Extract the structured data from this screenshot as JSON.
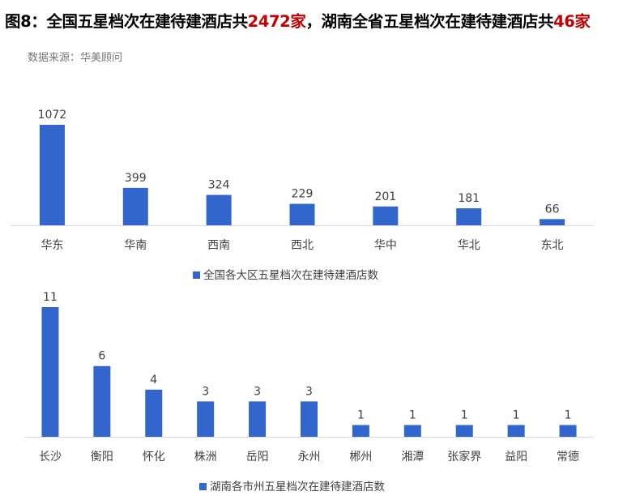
{
  "header": {
    "title_a": "图8：全国五星档次在建待建酒店共",
    "title_b": "2472家",
    "title_c": "，湖南全省五星档次在建待建酒店共",
    "title_d": "46家",
    "source": "数据来源：华美顾问",
    "highlight_color": "#c00000"
  },
  "chart_data": [
    {
      "type": "bar",
      "categories": [
        "华东",
        "华南",
        "西南",
        "西北",
        "华中",
        "华北",
        "东北"
      ],
      "series": [
        {
          "name": "全国各大区五星档次在建待建酒店数",
          "values": [
            1072,
            399,
            324,
            229,
            201,
            181,
            66
          ]
        }
      ],
      "color": "#3366cc",
      "legend": "bottom",
      "grid": false
    },
    {
      "type": "bar",
      "categories": [
        "长沙",
        "衡阳",
        "怀化",
        "株洲",
        "岳阳",
        "永州",
        "郴州",
        "湘潭",
        "张家界",
        "益阳",
        "常德"
      ],
      "series": [
        {
          "name": "湖南各市州五星档次在建待建酒店数",
          "values": [
            11,
            6,
            4,
            3,
            3,
            3,
            1,
            1,
            1,
            1,
            1
          ]
        }
      ],
      "color": "#3366cc",
      "legend": "bottom",
      "grid": false
    }
  ]
}
